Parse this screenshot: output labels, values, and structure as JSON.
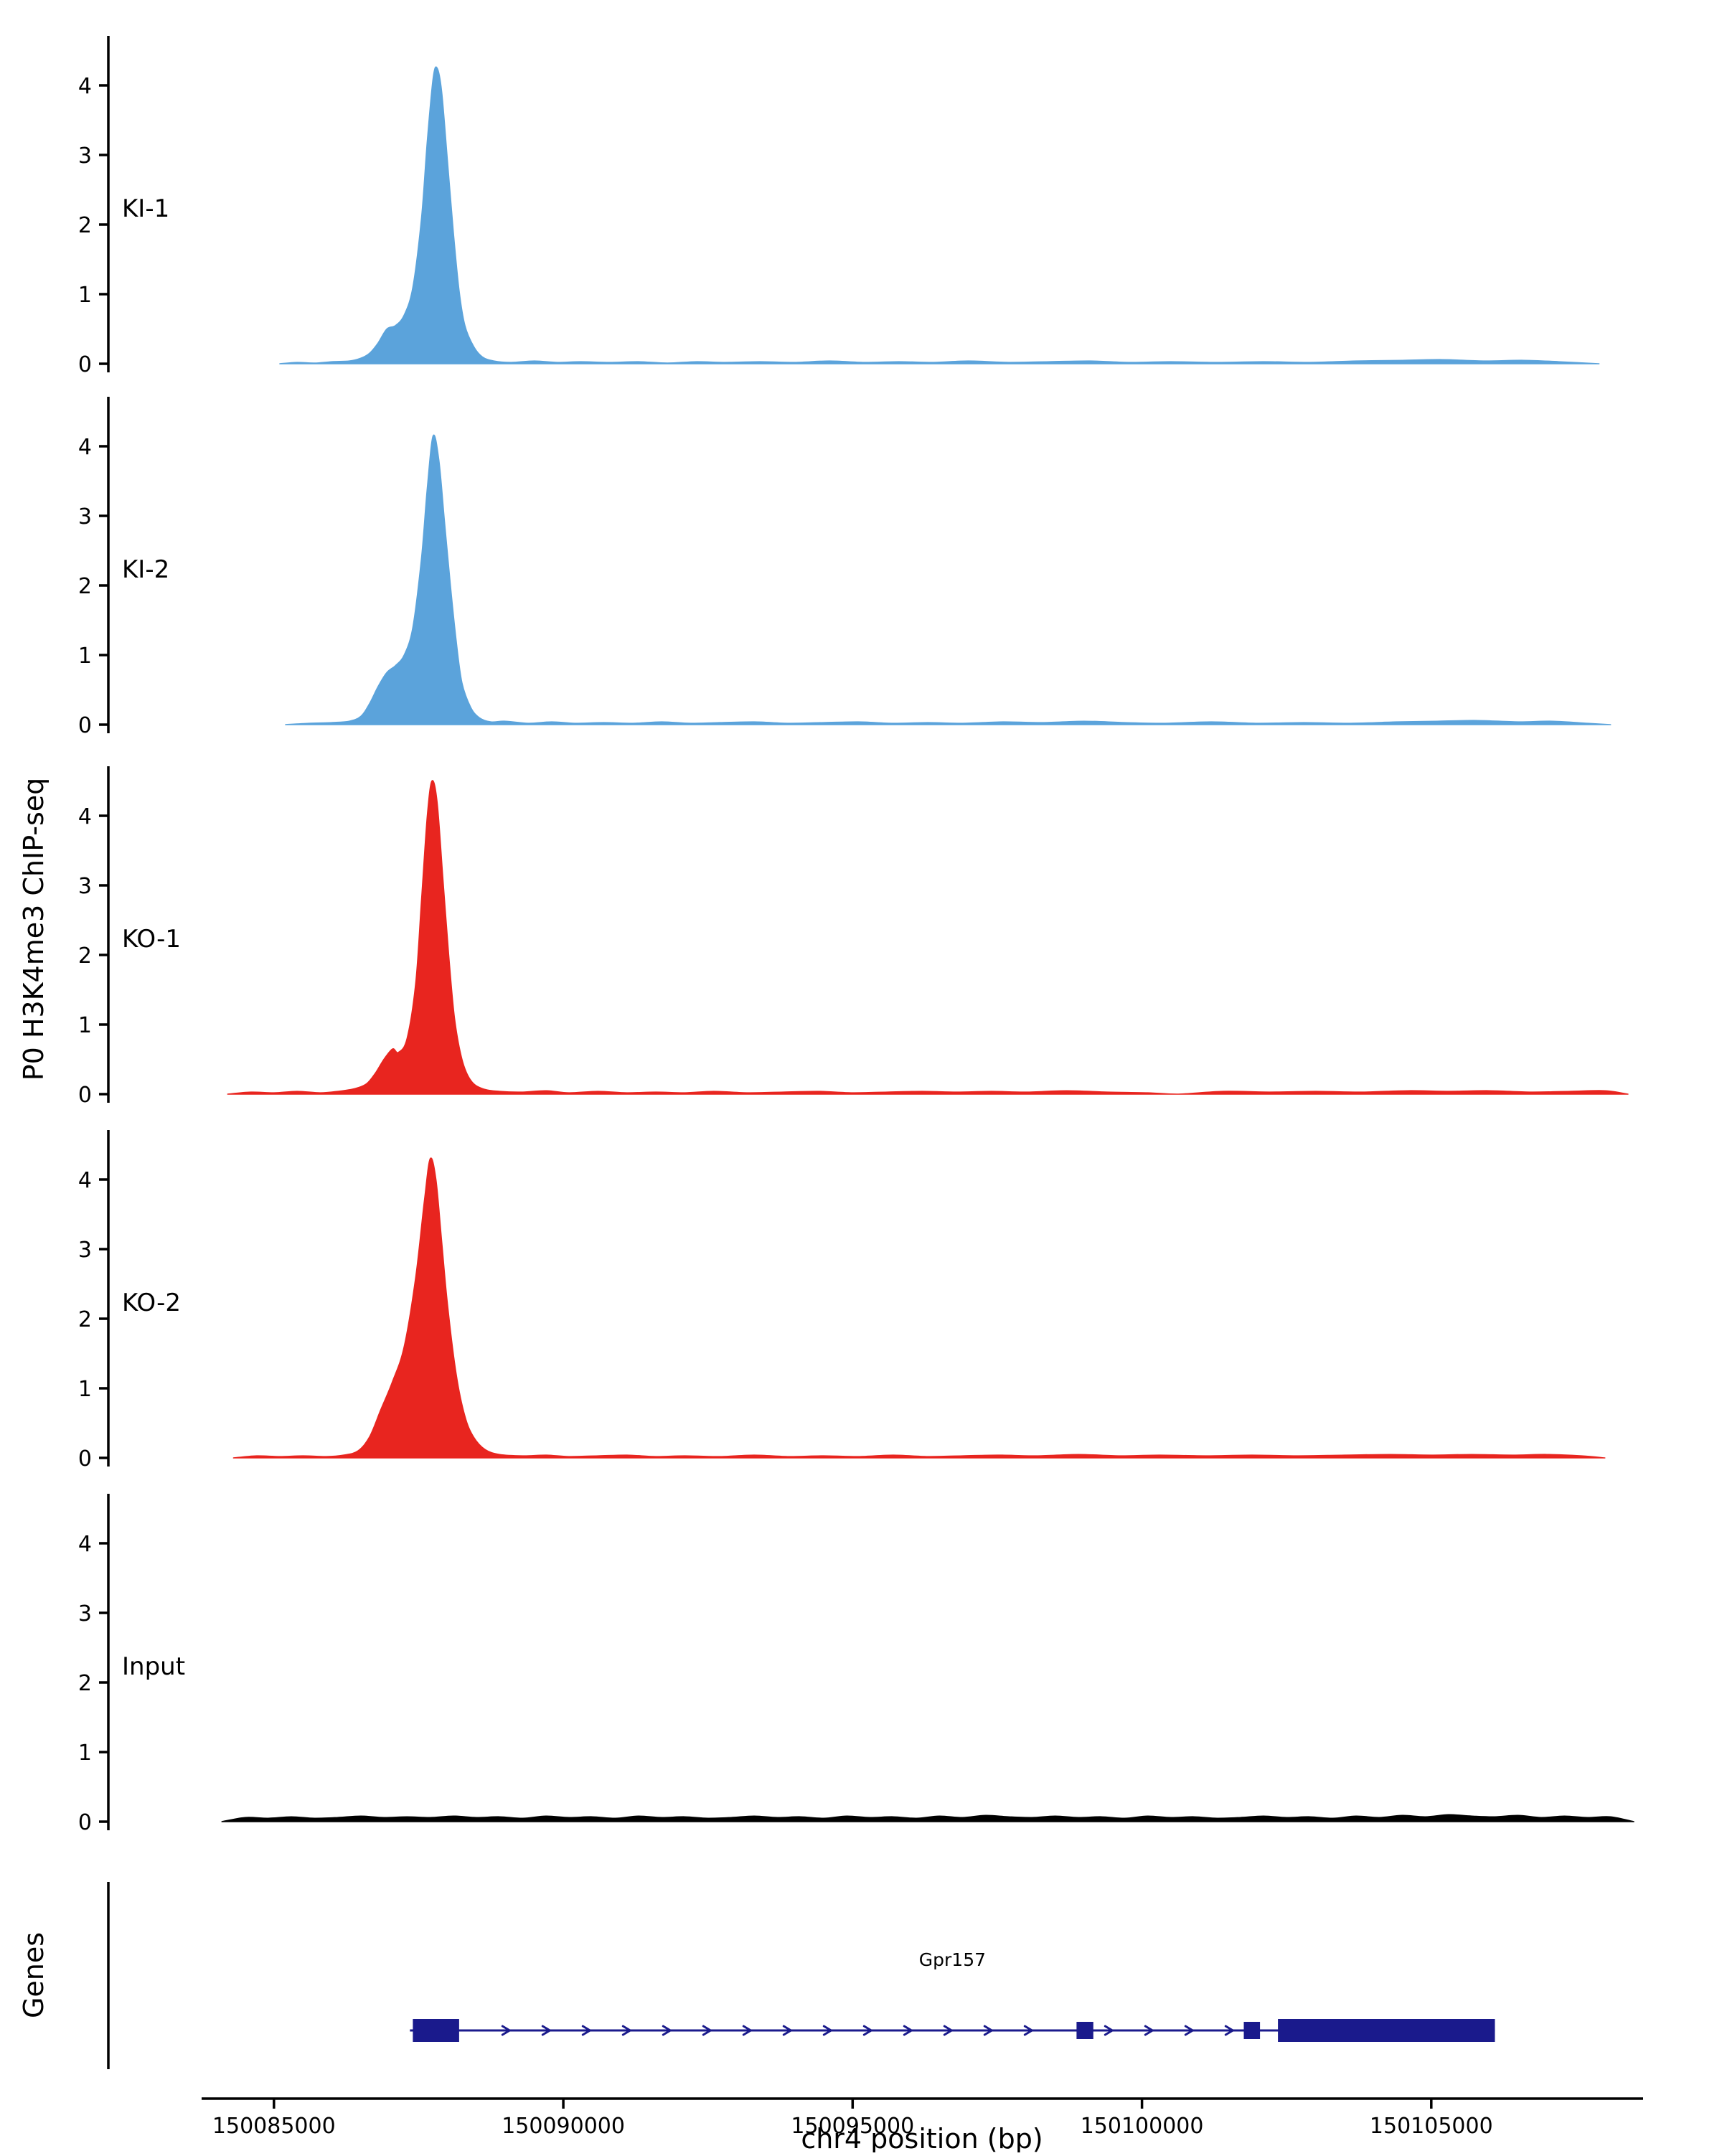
{
  "chart_data": {
    "type": "area",
    "title": "",
    "xlabel": "chr4 position (bp)",
    "ylabel": "P0 H3K4me3 ChIP-seq",
    "x_domain": [
      150083750,
      150108660
    ],
    "x_ticks": [
      150085000,
      150090000,
      150095000,
      150100000,
      150105000
    ],
    "y_domain": [
      0,
      4.7
    ],
    "y_ticks": [
      0,
      1,
      2,
      3,
      4
    ],
    "grid": false,
    "legend": "none",
    "tracks": [
      {
        "name": "KI-1",
        "color": "#5BA3DB",
        "points": [
          [
            150085100,
            0
          ],
          [
            150085400,
            0.02
          ],
          [
            150085700,
            0.01
          ],
          [
            150086000,
            0.03
          ],
          [
            150086300,
            0.04
          ],
          [
            150086500,
            0.08
          ],
          [
            150086650,
            0.15
          ],
          [
            150086800,
            0.3
          ],
          [
            150086950,
            0.5
          ],
          [
            150087100,
            0.55
          ],
          [
            150087250,
            0.7
          ],
          [
            150087400,
            1.1
          ],
          [
            150087550,
            2.1
          ],
          [
            150087650,
            3.2
          ],
          [
            150087750,
            4.1
          ],
          [
            150087820,
            4.25
          ],
          [
            150087900,
            3.9
          ],
          [
            150088000,
            2.9
          ],
          [
            150088100,
            1.9
          ],
          [
            150088200,
            1.05
          ],
          [
            150088300,
            0.55
          ],
          [
            150088450,
            0.25
          ],
          [
            150088600,
            0.1
          ],
          [
            150088800,
            0.04
          ],
          [
            150089100,
            0.02
          ],
          [
            150089500,
            0.04
          ],
          [
            150089900,
            0.02
          ],
          [
            150090300,
            0.03
          ],
          [
            150090800,
            0.02
          ],
          [
            150091300,
            0.03
          ],
          [
            150091800,
            0.01
          ],
          [
            150092300,
            0.03
          ],
          [
            150092800,
            0.02
          ],
          [
            150093400,
            0.03
          ],
          [
            150094000,
            0.02
          ],
          [
            150094600,
            0.04
          ],
          [
            150095200,
            0.02
          ],
          [
            150095800,
            0.03
          ],
          [
            150096400,
            0.02
          ],
          [
            150097000,
            0.04
          ],
          [
            150097700,
            0.02
          ],
          [
            150098400,
            0.03
          ],
          [
            150099100,
            0.04
          ],
          [
            150099800,
            0.02
          ],
          [
            150100500,
            0.03
          ],
          [
            150101300,
            0.02
          ],
          [
            150102100,
            0.03
          ],
          [
            150102900,
            0.02
          ],
          [
            150103700,
            0.04
          ],
          [
            150104500,
            0.05
          ],
          [
            150105200,
            0.06
          ],
          [
            150105900,
            0.04
          ],
          [
            150106600,
            0.05
          ],
          [
            150107200,
            0.03
          ],
          [
            150107900,
            0
          ]
        ]
      },
      {
        "name": "KI-2",
        "color": "#5BA3DB",
        "points": [
          [
            150085200,
            0
          ],
          [
            150085600,
            0.02
          ],
          [
            150086000,
            0.03
          ],
          [
            150086300,
            0.05
          ],
          [
            150086500,
            0.12
          ],
          [
            150086650,
            0.3
          ],
          [
            150086800,
            0.55
          ],
          [
            150086950,
            0.75
          ],
          [
            150087100,
            0.85
          ],
          [
            150087250,
            1.0
          ],
          [
            150087400,
            1.4
          ],
          [
            150087550,
            2.4
          ],
          [
            150087650,
            3.4
          ],
          [
            150087750,
            4.15
          ],
          [
            150087850,
            3.8
          ],
          [
            150087950,
            2.9
          ],
          [
            150088050,
            2.0
          ],
          [
            150088150,
            1.2
          ],
          [
            150088250,
            0.6
          ],
          [
            150088400,
            0.25
          ],
          [
            150088550,
            0.1
          ],
          [
            150088750,
            0.04
          ],
          [
            150089000,
            0.05
          ],
          [
            150089400,
            0.02
          ],
          [
            150089800,
            0.04
          ],
          [
            150090200,
            0.02
          ],
          [
            150090700,
            0.03
          ],
          [
            150091200,
            0.02
          ],
          [
            150091700,
            0.04
          ],
          [
            150092200,
            0.02
          ],
          [
            150092700,
            0.03
          ],
          [
            150093300,
            0.04
          ],
          [
            150093900,
            0.02
          ],
          [
            150094500,
            0.03
          ],
          [
            150095100,
            0.04
          ],
          [
            150095700,
            0.02
          ],
          [
            150096300,
            0.03
          ],
          [
            150096900,
            0.02
          ],
          [
            150097600,
            0.04
          ],
          [
            150098300,
            0.03
          ],
          [
            150099000,
            0.05
          ],
          [
            150099700,
            0.03
          ],
          [
            150100400,
            0.02
          ],
          [
            150101200,
            0.04
          ],
          [
            150102000,
            0.02
          ],
          [
            150102800,
            0.03
          ],
          [
            150103600,
            0.02
          ],
          [
            150104400,
            0.04
          ],
          [
            150105100,
            0.05
          ],
          [
            150105800,
            0.06
          ],
          [
            150106500,
            0.04
          ],
          [
            150107100,
            0.05
          ],
          [
            150107700,
            0.02
          ],
          [
            150108100,
            0
          ]
        ]
      },
      {
        "name": "KO-1",
        "color": "#E8251F",
        "points": [
          [
            150084200,
            0
          ],
          [
            150084600,
            0.03
          ],
          [
            150085000,
            0.02
          ],
          [
            150085400,
            0.04
          ],
          [
            150085800,
            0.02
          ],
          [
            150086100,
            0.04
          ],
          [
            150086400,
            0.08
          ],
          [
            150086600,
            0.15
          ],
          [
            150086750,
            0.3
          ],
          [
            150086900,
            0.5
          ],
          [
            150087050,
            0.65
          ],
          [
            150087150,
            0.6
          ],
          [
            150087300,
            0.8
          ],
          [
            150087450,
            1.6
          ],
          [
            150087550,
            2.8
          ],
          [
            150087650,
            4.0
          ],
          [
            150087730,
            4.5
          ],
          [
            150087820,
            4.2
          ],
          [
            150087920,
            3.1
          ],
          [
            150088020,
            2.0
          ],
          [
            150088120,
            1.1
          ],
          [
            150088250,
            0.5
          ],
          [
            150088400,
            0.2
          ],
          [
            150088600,
            0.08
          ],
          [
            150088900,
            0.04
          ],
          [
            150089300,
            0.03
          ],
          [
            150089700,
            0.05
          ],
          [
            150090100,
            0.02
          ],
          [
            150090600,
            0.04
          ],
          [
            150091100,
            0.02
          ],
          [
            150091600,
            0.03
          ],
          [
            150092100,
            0.02
          ],
          [
            150092600,
            0.04
          ],
          [
            150093200,
            0.02
          ],
          [
            150093800,
            0.03
          ],
          [
            150094400,
            0.04
          ],
          [
            150095000,
            0.02
          ],
          [
            150095600,
            0.03
          ],
          [
            150096200,
            0.04
          ],
          [
            150096800,
            0.03
          ],
          [
            150097400,
            0.04
          ],
          [
            150098000,
            0.03
          ],
          [
            150098700,
            0.05
          ],
          [
            150099400,
            0.03
          ],
          [
            150100100,
            0.02
          ],
          [
            150100600,
            0
          ],
          [
            150101400,
            0.04
          ],
          [
            150102200,
            0.03
          ],
          [
            150103000,
            0.04
          ],
          [
            150103800,
            0.03
          ],
          [
            150104600,
            0.05
          ],
          [
            150105300,
            0.04
          ],
          [
            150106000,
            0.05
          ],
          [
            150106700,
            0.03
          ],
          [
            150107400,
            0.04
          ],
          [
            150108000,
            0.05
          ],
          [
            150108400,
            0
          ]
        ]
      },
      {
        "name": "KO-2",
        "color": "#E8251F",
        "points": [
          [
            150084300,
            0
          ],
          [
            150084700,
            0.03
          ],
          [
            150085100,
            0.02
          ],
          [
            150085500,
            0.03
          ],
          [
            150085900,
            0.02
          ],
          [
            150086200,
            0.04
          ],
          [
            150086450,
            0.1
          ],
          [
            150086650,
            0.3
          ],
          [
            150086850,
            0.7
          ],
          [
            150087050,
            1.1
          ],
          [
            150087250,
            1.6
          ],
          [
            150087450,
            2.6
          ],
          [
            150087600,
            3.7
          ],
          [
            150087700,
            4.3
          ],
          [
            150087800,
            4.0
          ],
          [
            150087900,
            3.1
          ],
          [
            150088000,
            2.2
          ],
          [
            150088150,
            1.2
          ],
          [
            150088300,
            0.6
          ],
          [
            150088450,
            0.3
          ],
          [
            150088650,
            0.12
          ],
          [
            150088900,
            0.05
          ],
          [
            150089300,
            0.03
          ],
          [
            150089700,
            0.04
          ],
          [
            150090100,
            0.02
          ],
          [
            150090600,
            0.03
          ],
          [
            150091100,
            0.04
          ],
          [
            150091600,
            0.02
          ],
          [
            150092100,
            0.03
          ],
          [
            150092700,
            0.02
          ],
          [
            150093300,
            0.04
          ],
          [
            150093900,
            0.02
          ],
          [
            150094500,
            0.03
          ],
          [
            150095100,
            0.02
          ],
          [
            150095700,
            0.04
          ],
          [
            150096300,
            0.02
          ],
          [
            150096900,
            0.03
          ],
          [
            150097500,
            0.04
          ],
          [
            150098200,
            0.03
          ],
          [
            150098900,
            0.05
          ],
          [
            150099600,
            0.03
          ],
          [
            150100300,
            0.04
          ],
          [
            150101100,
            0.03
          ],
          [
            150101900,
            0.04
          ],
          [
            150102700,
            0.03
          ],
          [
            150103500,
            0.04
          ],
          [
            150104300,
            0.05
          ],
          [
            150105000,
            0.04
          ],
          [
            150105700,
            0.05
          ],
          [
            150106400,
            0.04
          ],
          [
            150107000,
            0.05
          ],
          [
            150107600,
            0.03
          ],
          [
            150108000,
            0
          ]
        ]
      },
      {
        "name": "Input",
        "color": "#000000",
        "points": [
          [
            150084100,
            0
          ],
          [
            150084500,
            0.06
          ],
          [
            150084900,
            0.05
          ],
          [
            150085300,
            0.07
          ],
          [
            150085700,
            0.05
          ],
          [
            150086100,
            0.06
          ],
          [
            150086500,
            0.08
          ],
          [
            150086900,
            0.06
          ],
          [
            150087300,
            0.07
          ],
          [
            150087700,
            0.06
          ],
          [
            150088100,
            0.08
          ],
          [
            150088500,
            0.06
          ],
          [
            150088900,
            0.07
          ],
          [
            150089300,
            0.05
          ],
          [
            150089700,
            0.08
          ],
          [
            150090100,
            0.06
          ],
          [
            150090500,
            0.07
          ],
          [
            150090900,
            0.05
          ],
          [
            150091300,
            0.08
          ],
          [
            150091700,
            0.06
          ],
          [
            150092100,
            0.07
          ],
          [
            150092500,
            0.05
          ],
          [
            150092900,
            0.06
          ],
          [
            150093300,
            0.08
          ],
          [
            150093700,
            0.06
          ],
          [
            150094100,
            0.07
          ],
          [
            150094500,
            0.05
          ],
          [
            150094900,
            0.08
          ],
          [
            150095300,
            0.06
          ],
          [
            150095700,
            0.07
          ],
          [
            150096100,
            0.05
          ],
          [
            150096500,
            0.08
          ],
          [
            150096900,
            0.06
          ],
          [
            150097300,
            0.09
          ],
          [
            150097700,
            0.07
          ],
          [
            150098100,
            0.06
          ],
          [
            150098500,
            0.08
          ],
          [
            150098900,
            0.06
          ],
          [
            150099300,
            0.07
          ],
          [
            150099700,
            0.05
          ],
          [
            150100100,
            0.08
          ],
          [
            150100500,
            0.06
          ],
          [
            150100900,
            0.07
          ],
          [
            150101300,
            0.05
          ],
          [
            150101700,
            0.06
          ],
          [
            150102100,
            0.08
          ],
          [
            150102500,
            0.06
          ],
          [
            150102900,
            0.07
          ],
          [
            150103300,
            0.05
          ],
          [
            150103700,
            0.08
          ],
          [
            150104100,
            0.06
          ],
          [
            150104500,
            0.09
          ],
          [
            150104900,
            0.07
          ],
          [
            150105300,
            0.1
          ],
          [
            150105700,
            0.08
          ],
          [
            150106100,
            0.07
          ],
          [
            150106500,
            0.09
          ],
          [
            150106900,
            0.06
          ],
          [
            150107300,
            0.08
          ],
          [
            150107700,
            0.06
          ],
          [
            150108100,
            0.07
          ],
          [
            150108500,
            0
          ]
        ]
      }
    ],
    "gene_track": {
      "label": "Genes",
      "genes": [
        {
          "name": "Gpr157",
          "color": "#1A1A8C",
          "strand": "+",
          "start": 150087350,
          "end": 150106100,
          "exons": [
            [
              150087400,
              150088200
            ],
            [
              150098870,
              150099160
            ],
            [
              150101760,
              150102040
            ],
            [
              150102350,
              150106100
            ]
          ]
        }
      ]
    }
  }
}
